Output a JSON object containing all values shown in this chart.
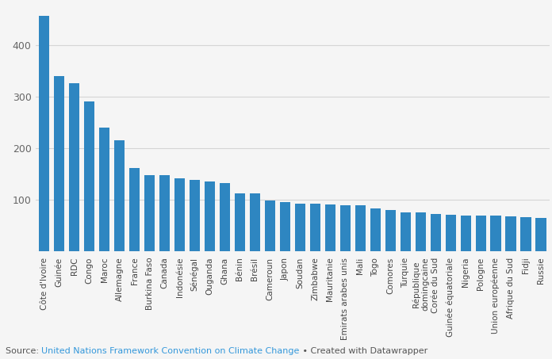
{
  "categories": [
    "Côte d'Ivoire",
    "Guinée",
    "RDC",
    "Congo",
    "Maroc",
    "Allemagne",
    "France",
    "Burkina Faso",
    "Canada",
    "Indonésie",
    "Sénégal",
    "Ouganda",
    "Ghana",
    "Bénin",
    "Brésil",
    "Cameroun",
    "Japon",
    "Soudan",
    "Zimbabwe",
    "Mauritanie",
    "Emirats arabes unis",
    "Mali",
    "Togo",
    "Comores",
    "Turquie",
    "République\ndomingcaine",
    "Corée du Sud",
    "Guinée équatoriale",
    "Nigeria",
    "Pologne",
    "Union européenne",
    "Afrique du Sud",
    "Fidji",
    "Russie"
  ],
  "values": [
    456,
    340,
    326,
    291,
    240,
    215,
    162,
    148,
    147,
    142,
    138,
    135,
    133,
    113,
    112,
    99,
    95,
    93,
    92,
    91,
    90,
    89,
    83,
    80,
    76,
    75,
    72,
    71,
    70,
    69,
    69,
    68,
    67,
    65
  ],
  "bar_color": "#2e86c1",
  "background_color": "#f5f5f5",
  "grid_color": "#d5d5d5",
  "yticks": [
    100,
    200,
    300,
    400
  ],
  "ylim": [
    0,
    470
  ],
  "source_text": "Source: ",
  "source_link": "United Nations Framework Convention on Climate Change",
  "source_suffix": " • Created with Datawrapper",
  "source_color": "#3498db",
  "source_plain_color": "#555555",
  "tick_label_fontsize": 7.5,
  "ytick_fontsize": 9.0,
  "source_fontsize": 8.0
}
